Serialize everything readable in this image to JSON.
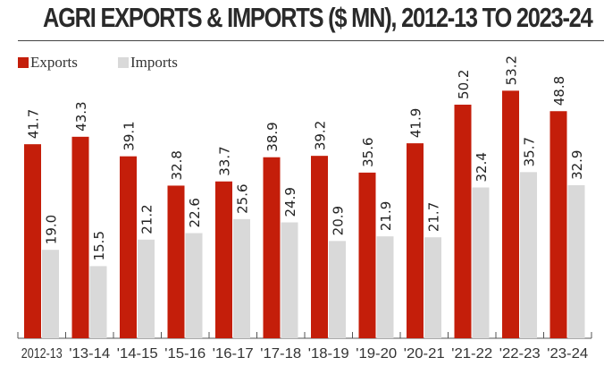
{
  "chart_data": {
    "type": "bar",
    "title": "AGRI EXPORTS & IMPORTS ($ MN), 2012-13 TO 2023-24",
    "categories": [
      "2012-13",
      "'13-14",
      "'14-15",
      "'15-16",
      "'16-17",
      "'17-18",
      "'18-19",
      "'19-20",
      "'20-21",
      "'21-22",
      "'22-23",
      "'23-24"
    ],
    "series": [
      {
        "name": "Exports",
        "color": "#c41e0a",
        "values": [
          41.7,
          43.3,
          39.1,
          32.8,
          33.7,
          38.9,
          39.2,
          35.6,
          41.9,
          50.2,
          53.2,
          48.8
        ]
      },
      {
        "name": "Imports",
        "color": "#d9d9d9",
        "values": [
          19.0,
          15.5,
          21.2,
          22.6,
          25.6,
          24.9,
          20.9,
          21.9,
          21.7,
          32.4,
          35.7,
          32.9
        ]
      }
    ],
    "xlabel": "",
    "ylabel": "",
    "ylim": [
      0,
      55
    ],
    "grid": false,
    "legend": "top-left"
  }
}
